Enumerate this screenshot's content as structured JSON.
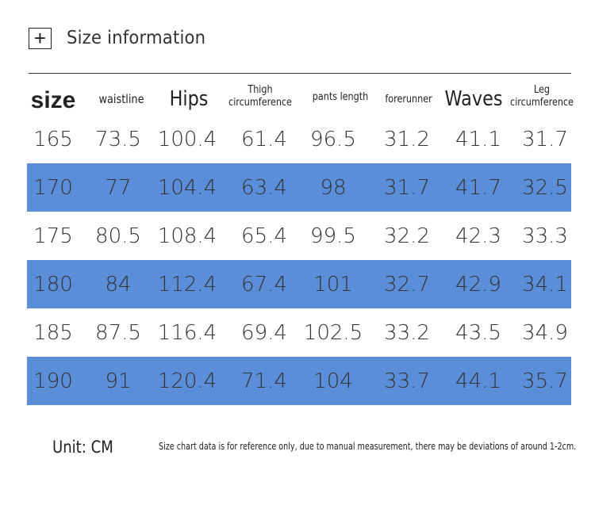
{
  "header": {
    "icon": "plus-icon",
    "icon_glyph": "+",
    "title": "Size information"
  },
  "table": {
    "columns": [
      {
        "key": "size",
        "label": "size"
      },
      {
        "key": "waistline",
        "label": "waistline"
      },
      {
        "key": "hips",
        "label": "Hips"
      },
      {
        "key": "thigh",
        "label_line1": "Thigh",
        "label_line2": "circumference"
      },
      {
        "key": "pants_length",
        "label": "pants length"
      },
      {
        "key": "forerunner",
        "label": "forerunner"
      },
      {
        "key": "waves",
        "label": "Waves"
      },
      {
        "key": "leg",
        "label_line1": "Leg",
        "label_line2": "circumference"
      }
    ],
    "rows": [
      [
        "165",
        "73.5",
        "100.4",
        "61.4",
        "96.5",
        "31.2",
        "41.1",
        "31.7"
      ],
      [
        "170",
        "77",
        "104.4",
        "63.4",
        "98",
        "31.7",
        "41.7",
        "32.5"
      ],
      [
        "175",
        "80.5",
        "108.4",
        "65.4",
        "99.5",
        "32.2",
        "42.3",
        "33.3"
      ],
      [
        "180",
        "84",
        "112.4",
        "67.4",
        "101",
        "32.7",
        "42.9",
        "34.1"
      ],
      [
        "185",
        "87.5",
        "116.4",
        "69.4",
        "102.5",
        "33.2",
        "43.5",
        "34.9"
      ],
      [
        "190",
        "91",
        "120.4",
        "71.4",
        "104",
        "33.7",
        "44.1",
        "35.7"
      ]
    ],
    "band_color": "#5b8ed8"
  },
  "footer": {
    "unit": "Unit: CM",
    "note": "Size chart data is for reference only, due to manual measurement, there may be deviations of around 1-2cm."
  }
}
